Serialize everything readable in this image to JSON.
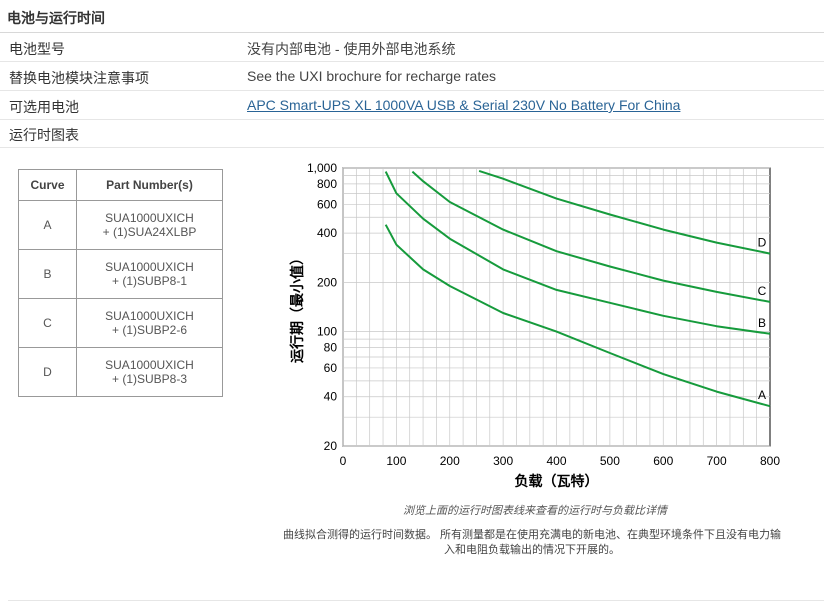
{
  "section": {
    "title": "电池与运行时间"
  },
  "specs": [
    {
      "label": "电池型号",
      "value": "没有内部电池 - 使用外部电池系统"
    },
    {
      "label": "替换电池模块注意事项",
      "value": "See the UXI brochure for recharge rates"
    },
    {
      "label": "可选用电池",
      "value": "APC Smart-UPS XL 1000VA USB & Serial 230V No Battery For China"
    },
    {
      "label": "运行时图表",
      "value": ""
    }
  ],
  "curve_table": {
    "headers": [
      "Curve",
      "Part Number(s)"
    ],
    "rows": [
      {
        "curve": "A",
        "part_line1": "SUA1000UXICH",
        "part_line2": "+ (1)SUA24XLBP"
      },
      {
        "curve": "B",
        "part_line1": "SUA1000UXICH",
        "part_line2": "+ (1)SUBP8-1"
      },
      {
        "curve": "C",
        "part_line1": "SUA1000UXICH",
        "part_line2": "+ (1)SUBP2-6"
      },
      {
        "curve": "D",
        "part_line1": "SUA1000UXICH",
        "part_line2": "+ (1)SUBP8-3"
      }
    ]
  },
  "chart_data": {
    "type": "line",
    "xlabel": "负载（瓦特）",
    "ylabel": "运行期（最小值）",
    "xlim": [
      0,
      800
    ],
    "ylim": [
      20,
      1000
    ],
    "yscale": "log",
    "grid": true,
    "xticks": [
      "0",
      "100",
      "200",
      "300",
      "400",
      "500",
      "600",
      "700",
      "800"
    ],
    "yticks": [
      "20",
      "40",
      "60",
      "80",
      "100",
      "200",
      "400",
      "600",
      "800",
      "1,000"
    ],
    "line_color": "#169b3c",
    "series": [
      {
        "name": "A",
        "x": [
          80,
          100,
          150,
          200,
          300,
          400,
          500,
          600,
          700,
          800
        ],
        "y": [
          450,
          340,
          240,
          190,
          130,
          100,
          74,
          55,
          43,
          35
        ]
      },
      {
        "name": "B",
        "x": [
          80,
          100,
          150,
          200,
          300,
          400,
          500,
          600,
          700,
          800
        ],
        "y": [
          950,
          700,
          490,
          370,
          240,
          180,
          150,
          125,
          108,
          97
        ]
      },
      {
        "name": "C",
        "x": [
          130,
          150,
          200,
          300,
          400,
          500,
          600,
          700,
          800
        ],
        "y": [
          950,
          830,
          620,
          420,
          310,
          250,
          205,
          175,
          152
        ]
      },
      {
        "name": "D",
        "x": [
          255,
          300,
          400,
          500,
          600,
          700,
          800
        ],
        "y": [
          960,
          860,
          650,
          520,
          420,
          350,
          300
        ]
      }
    ]
  },
  "caption": "浏览上面的运行时图表线来查看的运行时与负载比详情",
  "note": "曲线拟合测得的运行时间数据。 所有测量都是在使用充满电的新电池、在典型环境条件下且没有电力输入和电阻负载输出的情况下开展的。"
}
